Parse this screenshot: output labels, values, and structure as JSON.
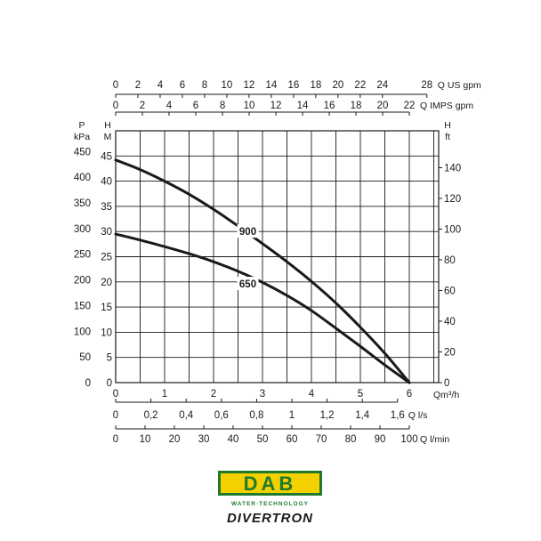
{
  "chart_data": {
    "type": "line",
    "title": "",
    "grid": true,
    "x_axis": {
      "label": "Qm³/h",
      "range": [
        0,
        6.6
      ],
      "ticks": [
        0,
        1,
        2,
        3,
        4,
        5,
        6
      ],
      "tick_labels": [
        "0",
        "1",
        "2",
        "3",
        "4",
        "5",
        "6"
      ]
    },
    "secondary_x_axes": [
      {
        "label": "Q US gpm",
        "position": "top",
        "ticks": [
          0,
          2,
          4,
          6,
          8,
          10,
          12,
          14,
          16,
          18,
          20,
          22,
          24,
          28
        ],
        "tick_labels": [
          "0",
          "2",
          "4",
          "6",
          "8",
          "10",
          "12",
          "14",
          "16",
          "18",
          "20",
          "22",
          "24",
          "28"
        ]
      },
      {
        "label": "Q IMPS gpm",
        "position": "top",
        "ticks": [
          0,
          2,
          4,
          6,
          8,
          10,
          12,
          14,
          16,
          18,
          20,
          22
        ],
        "tick_labels": [
          "0",
          "2",
          "4",
          "6",
          "8",
          "10",
          "12",
          "14",
          "16",
          "18",
          "20",
          "22"
        ]
      },
      {
        "label": "Q l/s",
        "position": "bottom",
        "ticks": [
          0,
          0.2,
          0.4,
          0.6,
          0.8,
          1,
          1.2,
          1.4,
          1.6
        ],
        "tick_labels": [
          "0",
          "0,2",
          "0,4",
          "0,6",
          "0,8",
          "1",
          "1,2",
          "1,4",
          "1,6"
        ]
      },
      {
        "label": "Q l/min",
        "position": "bottom",
        "ticks": [
          0,
          10,
          20,
          30,
          40,
          50,
          60,
          70,
          80,
          90,
          100
        ],
        "tick_labels": [
          "0",
          "10",
          "20",
          "30",
          "40",
          "50",
          "60",
          "70",
          "80",
          "90",
          "100"
        ]
      }
    ],
    "y_axis": {
      "label_top": "H",
      "label_unit": "M",
      "range": [
        0,
        50
      ],
      "ticks": [
        0,
        5,
        10,
        15,
        20,
        25,
        30,
        35,
        40,
        45
      ],
      "tick_labels": [
        "0",
        "5",
        "10",
        "15",
        "20",
        "25",
        "30",
        "35",
        "40",
        "45"
      ]
    },
    "secondary_y_axes": [
      {
        "label_top": "P",
        "label_unit": "kPa",
        "position": "left",
        "ticks": [
          0,
          50,
          100,
          150,
          200,
          250,
          300,
          350,
          400,
          450
        ],
        "tick_labels": [
          "0",
          "50",
          "100",
          "150",
          "200",
          "250",
          "300",
          "350",
          "400",
          "450"
        ]
      },
      {
        "label_top": "H",
        "label_unit": "ft",
        "position": "right",
        "ticks": [
          0,
          20,
          40,
          60,
          80,
          100,
          120,
          140
        ],
        "tick_labels": [
          "0",
          "20",
          "40",
          "60",
          "80",
          "100",
          "120",
          "140"
        ]
      }
    ],
    "series": [
      {
        "name": "900",
        "x": [
          0,
          0.5,
          1,
          1.5,
          2,
          2.5,
          3,
          3.5,
          4,
          4.5,
          5,
          5.5,
          6
        ],
        "y": [
          44.2,
          42.3,
          40.0,
          37.4,
          34.4,
          31.1,
          27.6,
          24.0,
          20.1,
          15.8,
          11.0,
          5.8,
          0
        ]
      },
      {
        "name": "650",
        "x": [
          0,
          0.5,
          1,
          1.5,
          2,
          2.5,
          3,
          3.5,
          4,
          4.5,
          5,
          5.5,
          6
        ],
        "y": [
          29.5,
          28.3,
          27.0,
          25.6,
          24.0,
          22.1,
          19.9,
          17.3,
          14.3,
          10.8,
          7.2,
          3.5,
          0
        ]
      }
    ],
    "curve_labels": [
      {
        "text": "900",
        "x": 2.7,
        "y": 30.0
      },
      {
        "text": "650",
        "x": 2.7,
        "y": 19.6
      }
    ]
  },
  "brand": {
    "logo_text": "DAB",
    "tagline": "WATER·TECHNOLOGY",
    "product": "DIVERTRON",
    "colors": {
      "logo_green": "#1f7a2e",
      "logo_yellow": "#f5d000",
      "logo_text": "#1f7a2e",
      "ink": "#1a1a1a"
    }
  }
}
